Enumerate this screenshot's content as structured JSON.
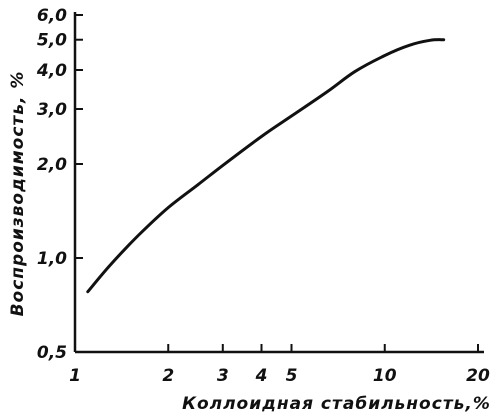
{
  "chart_data": {
    "type": "line",
    "xlabel": "Коллоидная стабильность,%",
    "ylabel": "Воспроизводимость, %",
    "xscale": "log",
    "yscale": "log",
    "xlim": [
      1,
      20
    ],
    "ylim": [
      0.5,
      6.0
    ],
    "x_ticks": [
      {
        "value": 1,
        "label": "1"
      },
      {
        "value": 2,
        "label": "2"
      },
      {
        "value": 3,
        "label": "3"
      },
      {
        "value": 4,
        "label": "4"
      },
      {
        "value": 5,
        "label": "5"
      },
      {
        "value": 10,
        "label": "10"
      },
      {
        "value": 20,
        "label": "20"
      }
    ],
    "y_ticks": [
      {
        "value": 0.5,
        "label": "0,5"
      },
      {
        "value": 1.0,
        "label": "1,0"
      },
      {
        "value": 2.0,
        "label": "2,0"
      },
      {
        "value": 3.0,
        "label": "3,0"
      },
      {
        "value": 4.0,
        "label": "4,0"
      },
      {
        "value": 5.0,
        "label": "5,0"
      },
      {
        "value": 6.0,
        "label": "6,0"
      }
    ],
    "grid": false,
    "series": [
      {
        "x": [
          1.1,
          1.3,
          1.6,
          2.0,
          2.5,
          3.0,
          4.0,
          5.0,
          6.5,
          8.0,
          10.0,
          12.0,
          14.0,
          15.5
        ],
        "values": [
          0.78,
          0.95,
          1.18,
          1.45,
          1.72,
          1.98,
          2.45,
          2.85,
          3.4,
          3.95,
          4.45,
          4.8,
          4.98,
          5.0
        ]
      }
    ]
  }
}
